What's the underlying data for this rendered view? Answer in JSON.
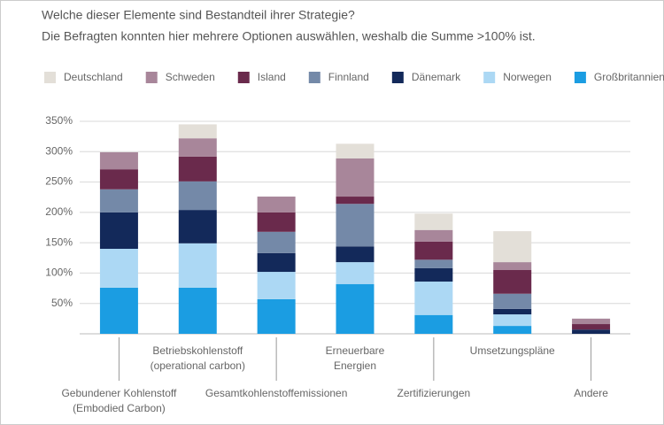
{
  "chart_data": {
    "type": "stacked_bar",
    "title": "Welche dieser Elemente sind Bestandteil ihrer Strategie?",
    "subtitle": "Die Befragten konnten hier mehrere Optionen auswählen, weshalb die Summe >100% ist.",
    "categories": [
      "Gebundener Kohlenstoff\n(Embodied Carbon)",
      "Betriebskohlenstoff\n(operational carbon)",
      "Gesamtkohlenstoffemissionen",
      "Erneuerbare\nEnergien",
      "Zertifizierungen",
      "Umsetzungspläne",
      "Andere"
    ],
    "series": [
      {
        "name": "Deutschland",
        "color": "#e3dfd8",
        "values": [
          0,
          23,
          0,
          24,
          27,
          51,
          0
        ]
      },
      {
        "name": "Schweden",
        "color": "#a8869a",
        "values": [
          28,
          30,
          26,
          63,
          19,
          13,
          9
        ]
      },
      {
        "name": "Island",
        "color": "#6a2a4c",
        "values": [
          33,
          41,
          32,
          12,
          30,
          39,
          9
        ]
      },
      {
        "name": "Finnland",
        "color": "#7489a8",
        "values": [
          38,
          47,
          35,
          70,
          14,
          25,
          0
        ]
      },
      {
        "name": "Dänemark",
        "color": "#13295a",
        "values": [
          60,
          55,
          31,
          26,
          22,
          9,
          7
        ]
      },
      {
        "name": "Norwegen",
        "color": "#acd8f4",
        "values": [
          64,
          73,
          45,
          36,
          55,
          19,
          0
        ]
      },
      {
        "name": "Großbritannien",
        "color": "#1b9de2",
        "values": [
          76,
          76,
          57,
          82,
          31,
          13,
          0
        ]
      }
    ],
    "ylim": [
      0,
      350
    ],
    "yticks": [
      {
        "value": 50,
        "label": "50%"
      },
      {
        "value": 100,
        "label": "100%"
      },
      {
        "value": 150,
        "label": "150%"
      },
      {
        "value": 200,
        "label": "200%"
      },
      {
        "value": 250,
        "label": "250%"
      },
      {
        "value": 300,
        "label": "300%"
      },
      {
        "value": 350,
        "label": "350%"
      }
    ],
    "grid": true
  }
}
